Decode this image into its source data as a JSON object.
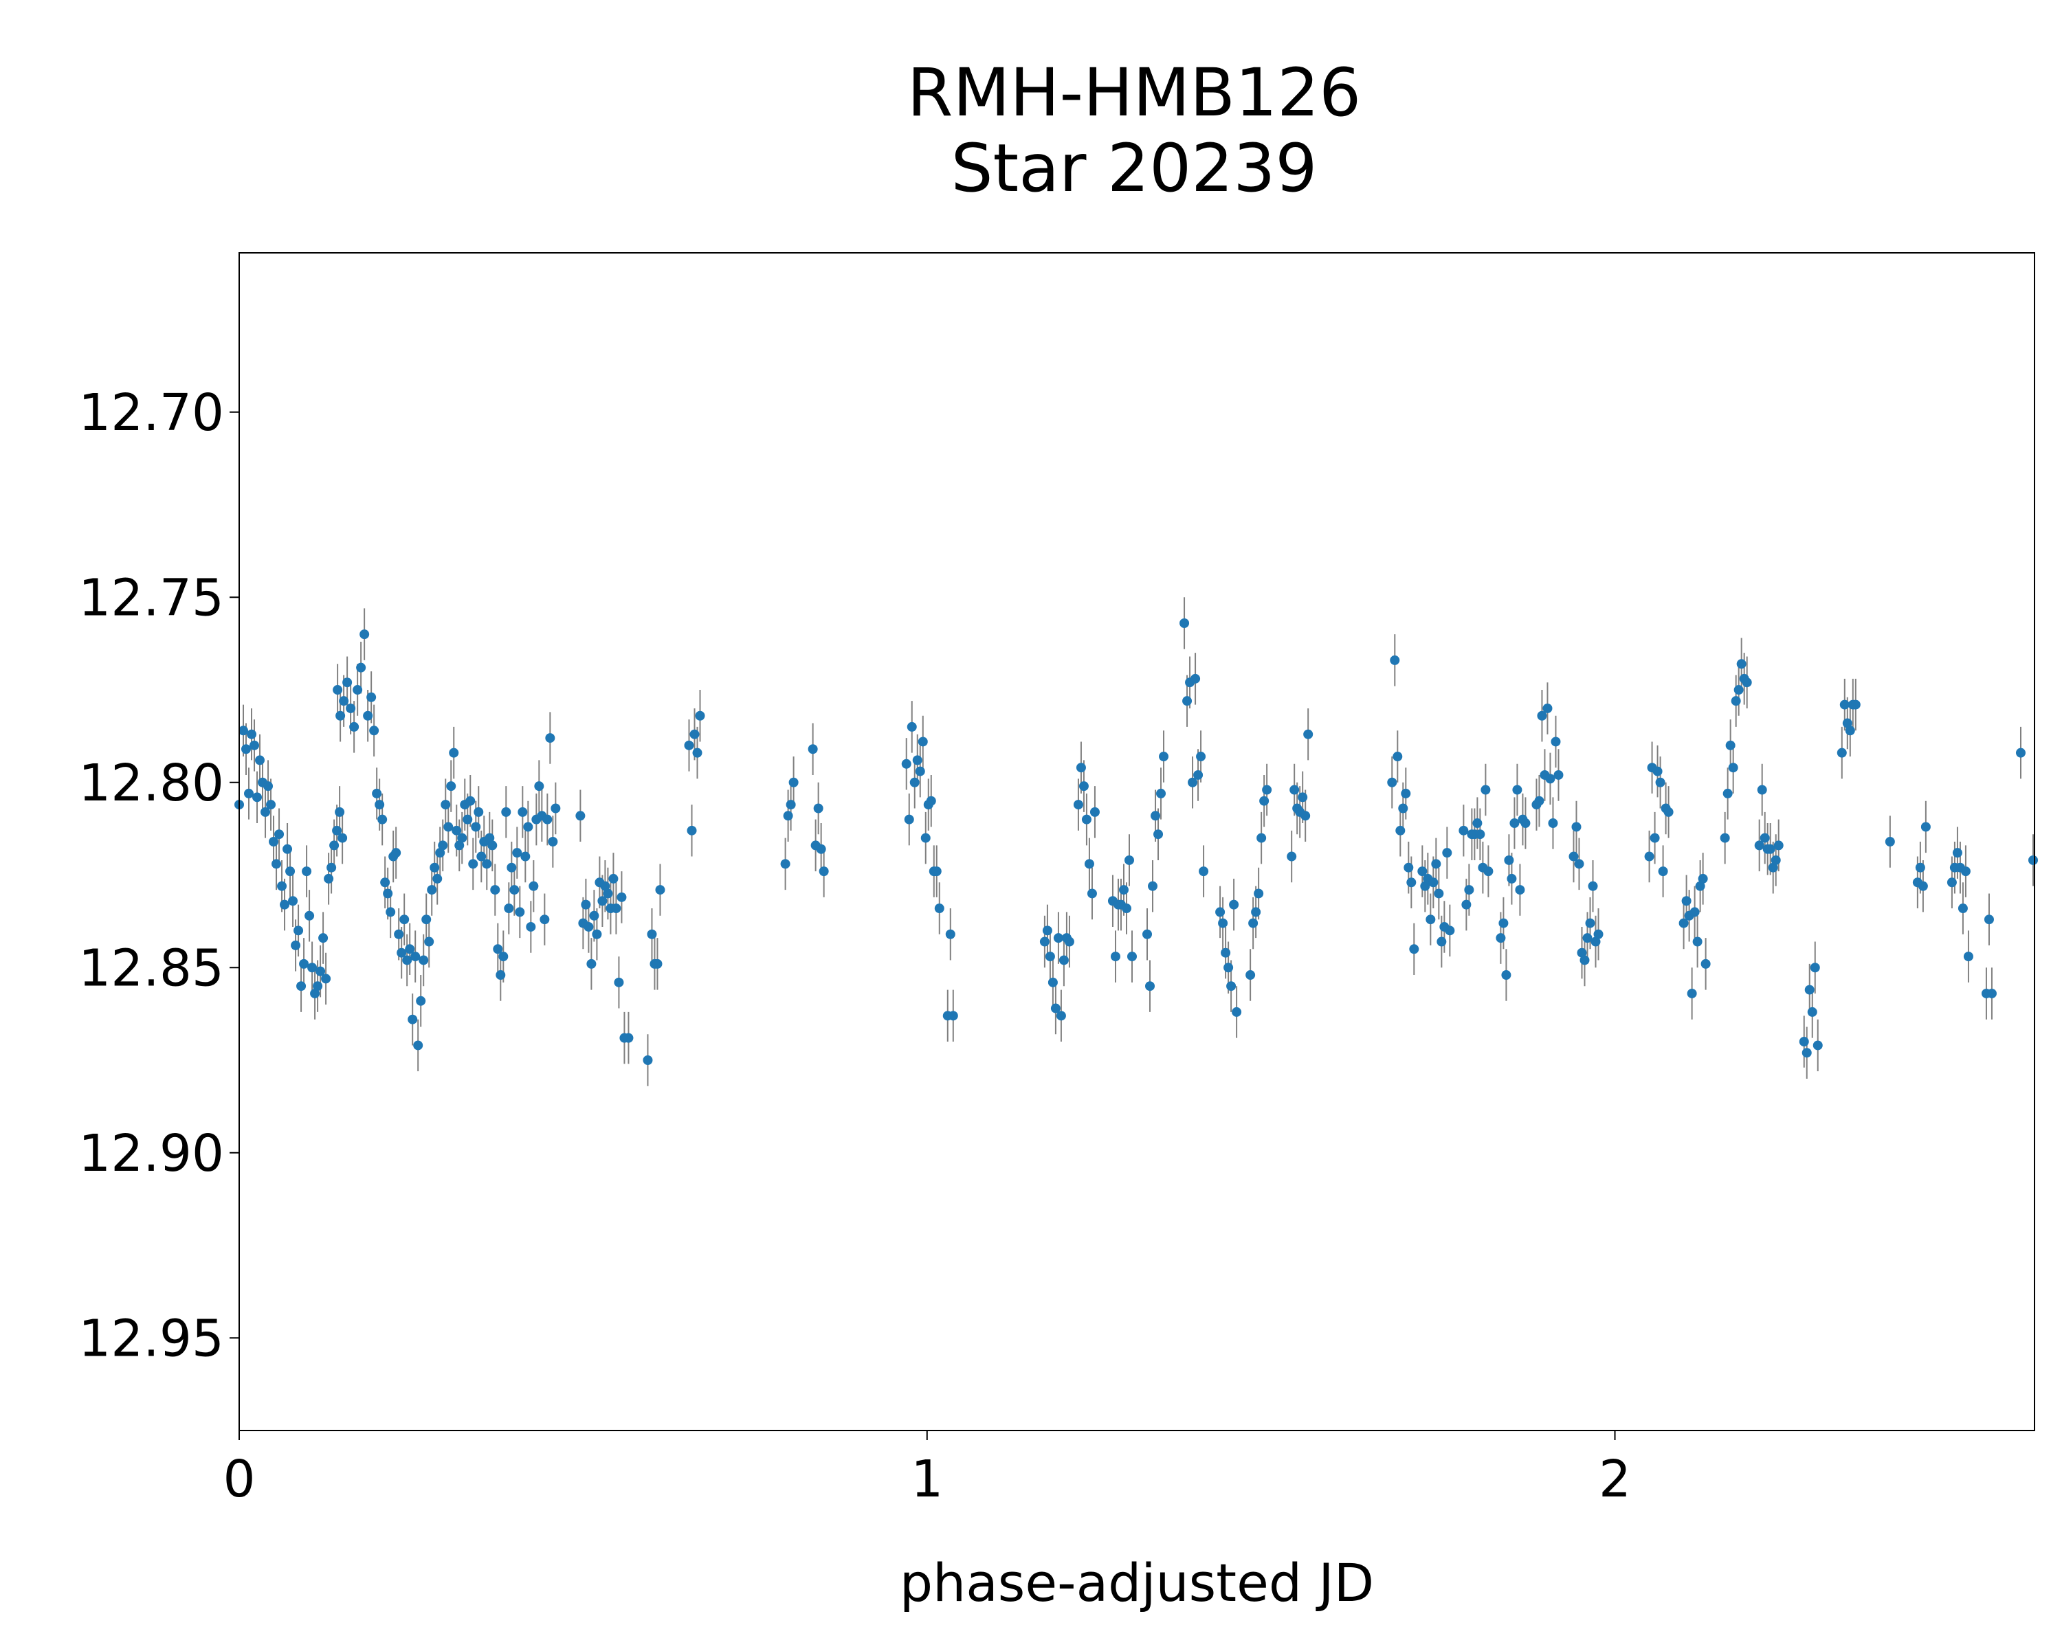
{
  "chart_data": {
    "type": "scatter",
    "title": "RMH-HMB126",
    "subtitle": "Star 20239",
    "xlabel": "phase-adjusted JD",
    "ylabel": "",
    "xlim": [
      0,
      2.61
    ],
    "ylim": [
      12.657,
      12.975
    ],
    "y_inverted": true,
    "x_ticks": [
      0,
      1,
      2
    ],
    "x_tick_labels": [
      "0",
      "1",
      "2"
    ],
    "y_ticks": [
      12.7,
      12.75,
      12.8,
      12.85,
      12.9,
      12.95
    ],
    "y_tick_labels": [
      "12.70",
      "12.75",
      "12.80",
      "12.85",
      "12.90",
      "12.95"
    ],
    "grid": false,
    "legend": "none",
    "marker_color": "#1f77b4",
    "errorbar_color": "#808080",
    "error_half_width": 0.007,
    "points": [
      [
        0.0,
        12.806
      ],
      [
        0.006,
        12.786
      ],
      [
        0.01,
        12.791
      ],
      [
        0.014,
        12.803
      ],
      [
        0.018,
        12.787
      ],
      [
        0.022,
        12.79
      ],
      [
        0.026,
        12.804
      ],
      [
        0.03,
        12.794
      ],
      [
        0.034,
        12.8
      ],
      [
        0.038,
        12.808
      ],
      [
        0.042,
        12.801
      ],
      [
        0.046,
        12.806
      ],
      [
        0.05,
        12.816
      ],
      [
        0.054,
        12.822
      ],
      [
        0.058,
        12.814
      ],
      [
        0.062,
        12.828
      ],
      [
        0.066,
        12.833
      ],
      [
        0.07,
        12.818
      ],
      [
        0.074,
        12.824
      ],
      [
        0.078,
        12.832
      ],
      [
        0.082,
        12.844
      ],
      [
        0.086,
        12.84
      ],
      [
        0.09,
        12.855
      ],
      [
        0.094,
        12.849
      ],
      [
        0.098,
        12.824
      ],
      [
        0.102,
        12.836
      ],
      [
        0.106,
        12.85
      ],
      [
        0.11,
        12.857
      ],
      [
        0.114,
        12.855
      ],
      [
        0.118,
        12.851
      ],
      [
        0.122,
        12.842
      ],
      [
        0.126,
        12.853
      ],
      [
        0.13,
        12.826
      ],
      [
        0.134,
        12.823
      ],
      [
        0.138,
        12.817
      ],
      [
        0.142,
        12.813
      ],
      [
        0.146,
        12.808
      ],
      [
        0.15,
        12.815
      ],
      [
        0.143,
        12.775
      ],
      [
        0.147,
        12.782
      ],
      [
        0.152,
        12.778
      ],
      [
        0.157,
        12.773
      ],
      [
        0.162,
        12.78
      ],
      [
        0.167,
        12.785
      ],
      [
        0.172,
        12.775
      ],
      [
        0.177,
        12.769
      ],
      [
        0.182,
        12.76
      ],
      [
        0.187,
        12.782
      ],
      [
        0.192,
        12.777
      ],
      [
        0.196,
        12.786
      ],
      [
        0.2,
        12.803
      ],
      [
        0.204,
        12.806
      ],
      [
        0.208,
        12.81
      ],
      [
        0.212,
        12.827
      ],
      [
        0.216,
        12.83
      ],
      [
        0.22,
        12.835
      ],
      [
        0.224,
        12.82
      ],
      [
        0.228,
        12.819
      ],
      [
        0.232,
        12.841
      ],
      [
        0.236,
        12.846
      ],
      [
        0.24,
        12.837
      ],
      [
        0.244,
        12.848
      ],
      [
        0.248,
        12.845
      ],
      [
        0.252,
        12.864
      ],
      [
        0.256,
        12.847
      ],
      [
        0.26,
        12.871
      ],
      [
        0.264,
        12.859
      ],
      [
        0.268,
        12.848
      ],
      [
        0.272,
        12.837
      ],
      [
        0.276,
        12.843
      ],
      [
        0.28,
        12.829
      ],
      [
        0.284,
        12.823
      ],
      [
        0.288,
        12.826
      ],
      [
        0.292,
        12.819
      ],
      [
        0.296,
        12.817
      ],
      [
        0.3,
        12.806
      ],
      [
        0.304,
        12.812
      ],
      [
        0.308,
        12.801
      ],
      [
        0.312,
        12.792
      ],
      [
        0.316,
        12.813
      ],
      [
        0.32,
        12.817
      ],
      [
        0.324,
        12.815
      ],
      [
        0.328,
        12.806
      ],
      [
        0.332,
        12.81
      ],
      [
        0.336,
        12.805
      ],
      [
        0.34,
        12.822
      ],
      [
        0.344,
        12.812
      ],
      [
        0.348,
        12.808
      ],
      [
        0.352,
        12.82
      ],
      [
        0.356,
        12.816
      ],
      [
        0.36,
        12.822
      ],
      [
        0.364,
        12.815
      ],
      [
        0.368,
        12.817
      ],
      [
        0.372,
        12.829
      ],
      [
        0.376,
        12.845
      ],
      [
        0.38,
        12.852
      ],
      [
        0.384,
        12.847
      ],
      [
        0.388,
        12.808
      ],
      [
        0.392,
        12.834
      ],
      [
        0.396,
        12.823
      ],
      [
        0.4,
        12.829
      ],
      [
        0.404,
        12.819
      ],
      [
        0.408,
        12.835
      ],
      [
        0.412,
        12.808
      ],
      [
        0.416,
        12.82
      ],
      [
        0.42,
        12.812
      ],
      [
        0.424,
        12.839
      ],
      [
        0.428,
        12.828
      ],
      [
        0.432,
        12.81
      ],
      [
        0.436,
        12.801
      ],
      [
        0.44,
        12.809
      ],
      [
        0.444,
        12.837
      ],
      [
        0.448,
        12.81
      ],
      [
        0.452,
        12.788
      ],
      [
        0.456,
        12.816
      ],
      [
        0.46,
        12.807
      ],
      [
        0.496,
        12.809
      ],
      [
        0.5,
        12.838
      ],
      [
        0.504,
        12.833
      ],
      [
        0.508,
        12.839
      ],
      [
        0.512,
        12.849
      ],
      [
        0.516,
        12.836
      ],
      [
        0.52,
        12.841
      ],
      [
        0.524,
        12.827
      ],
      [
        0.528,
        12.832
      ],
      [
        0.532,
        12.828
      ],
      [
        0.536,
        12.83
      ],
      [
        0.54,
        12.834
      ],
      [
        0.544,
        12.826
      ],
      [
        0.548,
        12.834
      ],
      [
        0.552,
        12.854
      ],
      [
        0.556,
        12.831
      ],
      [
        0.56,
        12.869
      ],
      [
        0.566,
        12.869
      ],
      [
        0.594,
        12.875
      ],
      [
        0.6,
        12.841
      ],
      [
        0.604,
        12.849
      ],
      [
        0.608,
        12.849
      ],
      [
        0.612,
        12.829
      ],
      [
        0.654,
        12.79
      ],
      [
        0.658,
        12.813
      ],
      [
        0.662,
        12.787
      ],
      [
        0.666,
        12.792
      ],
      [
        0.67,
        12.782
      ],
      [
        0.794,
        12.822
      ],
      [
        0.798,
        12.809
      ],
      [
        0.802,
        12.806
      ],
      [
        0.806,
        12.8
      ],
      [
        0.834,
        12.791
      ],
      [
        0.838,
        12.817
      ],
      [
        0.842,
        12.807
      ],
      [
        0.846,
        12.818
      ],
      [
        0.85,
        12.824
      ],
      [
        0.97,
        12.795
      ],
      [
        0.974,
        12.81
      ],
      [
        0.978,
        12.785
      ],
      [
        0.982,
        12.8
      ],
      [
        0.986,
        12.794
      ],
      [
        0.99,
        12.797
      ],
      [
        0.994,
        12.789
      ],
      [
        0.998,
        12.815
      ],
      [
        1.002,
        12.806
      ],
      [
        1.006,
        12.805
      ],
      [
        1.01,
        12.824
      ],
      [
        1.014,
        12.824
      ],
      [
        1.018,
        12.834
      ],
      [
        1.03,
        12.863
      ],
      [
        1.034,
        12.841
      ],
      [
        1.038,
        12.863
      ],
      [
        1.171,
        12.843
      ],
      [
        1.175,
        12.84
      ],
      [
        1.179,
        12.847
      ],
      [
        1.183,
        12.854
      ],
      [
        1.187,
        12.861
      ],
      [
        1.191,
        12.842
      ],
      [
        1.195,
        12.863
      ],
      [
        1.199,
        12.848
      ],
      [
        1.203,
        12.842
      ],
      [
        1.207,
        12.843
      ],
      [
        1.22,
        12.806
      ],
      [
        1.224,
        12.796
      ],
      [
        1.228,
        12.801
      ],
      [
        1.232,
        12.81
      ],
      [
        1.236,
        12.822
      ],
      [
        1.24,
        12.83
      ],
      [
        1.244,
        12.808
      ],
      [
        1.27,
        12.832
      ],
      [
        1.274,
        12.847
      ],
      [
        1.278,
        12.833
      ],
      [
        1.282,
        12.833
      ],
      [
        1.286,
        12.829
      ],
      [
        1.29,
        12.834
      ],
      [
        1.294,
        12.821
      ],
      [
        1.298,
        12.847
      ],
      [
        1.32,
        12.841
      ],
      [
        1.324,
        12.855
      ],
      [
        1.328,
        12.828
      ],
      [
        1.332,
        12.809
      ],
      [
        1.336,
        12.814
      ],
      [
        1.34,
        12.803
      ],
      [
        1.344,
        12.793
      ],
      [
        1.374,
        12.757
      ],
      [
        1.378,
        12.778
      ],
      [
        1.382,
        12.773
      ],
      [
        1.386,
        12.8
      ],
      [
        1.39,
        12.772
      ],
      [
        1.394,
        12.798
      ],
      [
        1.398,
        12.793
      ],
      [
        1.402,
        12.824
      ],
      [
        1.426,
        12.835
      ],
      [
        1.43,
        12.838
      ],
      [
        1.434,
        12.846
      ],
      [
        1.438,
        12.85
      ],
      [
        1.442,
        12.855
      ],
      [
        1.446,
        12.833
      ],
      [
        1.45,
        12.862
      ],
      [
        1.47,
        12.852
      ],
      [
        1.474,
        12.838
      ],
      [
        1.478,
        12.835
      ],
      [
        1.482,
        12.83
      ],
      [
        1.486,
        12.815
      ],
      [
        1.49,
        12.805
      ],
      [
        1.494,
        12.802
      ],
      [
        1.53,
        12.82
      ],
      [
        1.534,
        12.802
      ],
      [
        1.538,
        12.807
      ],
      [
        1.542,
        12.808
      ],
      [
        1.546,
        12.804
      ],
      [
        1.55,
        12.809
      ],
      [
        1.554,
        12.787
      ],
      [
        1.676,
        12.8
      ],
      [
        1.68,
        12.767
      ],
      [
        1.684,
        12.793
      ],
      [
        1.688,
        12.813
      ],
      [
        1.692,
        12.807
      ],
      [
        1.696,
        12.803
      ],
      [
        1.7,
        12.823
      ],
      [
        1.704,
        12.827
      ],
      [
        1.708,
        12.845
      ],
      [
        1.72,
        12.824
      ],
      [
        1.724,
        12.828
      ],
      [
        1.728,
        12.826
      ],
      [
        1.732,
        12.837
      ],
      [
        1.736,
        12.827
      ],
      [
        1.74,
        12.822
      ],
      [
        1.744,
        12.83
      ],
      [
        1.748,
        12.843
      ],
      [
        1.752,
        12.839
      ],
      [
        1.756,
        12.819
      ],
      [
        1.76,
        12.84
      ],
      [
        1.78,
        12.813
      ],
      [
        1.784,
        12.833
      ],
      [
        1.788,
        12.829
      ],
      [
        1.792,
        12.814
      ],
      [
        1.796,
        12.814
      ],
      [
        1.8,
        12.811
      ],
      [
        1.804,
        12.814
      ],
      [
        1.808,
        12.823
      ],
      [
        1.812,
        12.802
      ],
      [
        1.816,
        12.824
      ],
      [
        1.834,
        12.842
      ],
      [
        1.838,
        12.838
      ],
      [
        1.842,
        12.852
      ],
      [
        1.846,
        12.821
      ],
      [
        1.85,
        12.826
      ],
      [
        1.854,
        12.811
      ],
      [
        1.858,
        12.802
      ],
      [
        1.862,
        12.829
      ],
      [
        1.866,
        12.81
      ],
      [
        1.87,
        12.811
      ],
      [
        1.886,
        12.806
      ],
      [
        1.89,
        12.805
      ],
      [
        1.894,
        12.782
      ],
      [
        1.898,
        12.798
      ],
      [
        1.902,
        12.78
      ],
      [
        1.906,
        12.799
      ],
      [
        1.91,
        12.811
      ],
      [
        1.914,
        12.789
      ],
      [
        1.918,
        12.798
      ],
      [
        1.94,
        12.82
      ],
      [
        1.944,
        12.812
      ],
      [
        1.948,
        12.822
      ],
      [
        1.952,
        12.846
      ],
      [
        1.956,
        12.848
      ],
      [
        1.96,
        12.842
      ],
      [
        1.964,
        12.838
      ],
      [
        1.968,
        12.828
      ],
      [
        1.972,
        12.843
      ],
      [
        1.976,
        12.841
      ],
      [
        2.05,
        12.82
      ],
      [
        2.054,
        12.796
      ],
      [
        2.058,
        12.815
      ],
      [
        2.062,
        12.797
      ],
      [
        2.066,
        12.8
      ],
      [
        2.07,
        12.824
      ],
      [
        2.074,
        12.807
      ],
      [
        2.078,
        12.808
      ],
      [
        2.1,
        12.838
      ],
      [
        2.104,
        12.832
      ],
      [
        2.108,
        12.836
      ],
      [
        2.112,
        12.857
      ],
      [
        2.116,
        12.835
      ],
      [
        2.12,
        12.843
      ],
      [
        2.124,
        12.828
      ],
      [
        2.128,
        12.826
      ],
      [
        2.132,
        12.849
      ],
      [
        2.16,
        12.815
      ],
      [
        2.164,
        12.803
      ],
      [
        2.168,
        12.79
      ],
      [
        2.172,
        12.796
      ],
      [
        2.176,
        12.778
      ],
      [
        2.18,
        12.775
      ],
      [
        2.184,
        12.768
      ],
      [
        2.188,
        12.772
      ],
      [
        2.192,
        12.773
      ],
      [
        2.21,
        12.817
      ],
      [
        2.214,
        12.802
      ],
      [
        2.218,
        12.815
      ],
      [
        2.222,
        12.818
      ],
      [
        2.226,
        12.818
      ],
      [
        2.23,
        12.823
      ],
      [
        2.234,
        12.821
      ],
      [
        2.238,
        12.817
      ],
      [
        2.275,
        12.87
      ],
      [
        2.279,
        12.873
      ],
      [
        2.283,
        12.856
      ],
      [
        2.287,
        12.862
      ],
      [
        2.291,
        12.85
      ],
      [
        2.295,
        12.871
      ],
      [
        2.33,
        12.792
      ],
      [
        2.334,
        12.779
      ],
      [
        2.338,
        12.784
      ],
      [
        2.342,
        12.786
      ],
      [
        2.346,
        12.779
      ],
      [
        2.35,
        12.779
      ],
      [
        2.4,
        12.816
      ],
      [
        2.44,
        12.827
      ],
      [
        2.444,
        12.823
      ],
      [
        2.448,
        12.828
      ],
      [
        2.452,
        12.812
      ],
      [
        2.49,
        12.827
      ],
      [
        2.494,
        12.823
      ],
      [
        2.498,
        12.819
      ],
      [
        2.502,
        12.823
      ],
      [
        2.506,
        12.834
      ],
      [
        2.51,
        12.824
      ],
      [
        2.514,
        12.847
      ],
      [
        2.54,
        12.857
      ],
      [
        2.544,
        12.837
      ],
      [
        2.548,
        12.857
      ],
      [
        2.59,
        12.792
      ],
      [
        2.608,
        12.821
      ]
    ]
  }
}
